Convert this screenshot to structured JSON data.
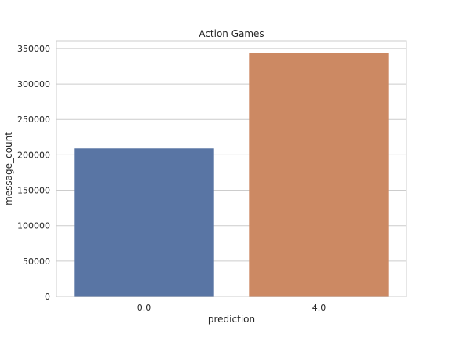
{
  "chart_data": {
    "type": "bar",
    "title": "Action Games",
    "xlabel": "prediction",
    "ylabel": "message_count",
    "categories": [
      "0.0",
      "4.0"
    ],
    "values": [
      209000,
      344000
    ],
    "ylim": [
      0,
      361000
    ],
    "yticks": [
      0,
      50000,
      100000,
      150000,
      200000,
      250000,
      300000,
      350000
    ],
    "colors": [
      "#5975a4",
      "#cc8963"
    ],
    "grid": true,
    "legend": "none"
  }
}
